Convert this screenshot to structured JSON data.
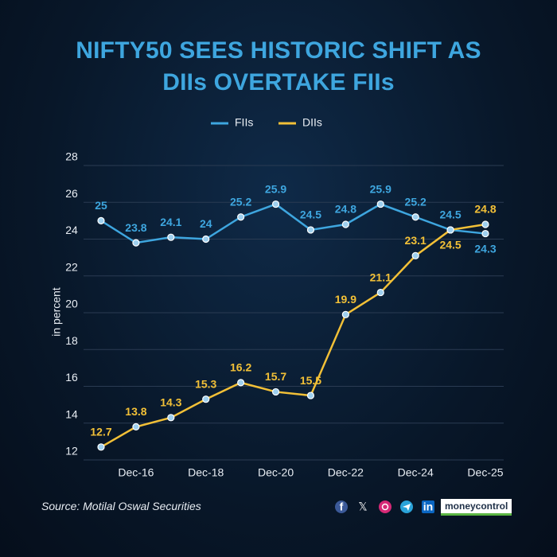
{
  "chart_data": {
    "type": "line",
    "title": "NIFTY50 SEES HISTORIC SHIFT AS DIIs OVERTAKE FIIs",
    "y_label": "in percent",
    "categories": [
      null,
      "Dec-16",
      null,
      "Dec-18",
      null,
      "Dec-20",
      null,
      "Dec-22",
      null,
      "Dec-24",
      null,
      "Dec-25"
    ],
    "series": [
      {
        "name": "FIIs",
        "color": "#3ea6df",
        "values": [
          25,
          23.8,
          24.1,
          24,
          25.2,
          25.9,
          24.5,
          24.8,
          25.9,
          25.2,
          24.5,
          24.3
        ]
      },
      {
        "name": "DIIs",
        "color": "#f2c037",
        "values": [
          12.7,
          13.8,
          14.3,
          15.3,
          16.2,
          15.7,
          15.5,
          19.9,
          21.1,
          23.1,
          24.5,
          24.8
        ]
      }
    ],
    "ylim": [
      12,
      28
    ],
    "yticks": [
      12,
      14,
      16,
      18,
      20,
      22,
      24,
      26,
      28
    ],
    "grid": true,
    "legend": "top",
    "source": "Source: Motilal Oswal Securities",
    "brand": "moneycontrol"
  }
}
